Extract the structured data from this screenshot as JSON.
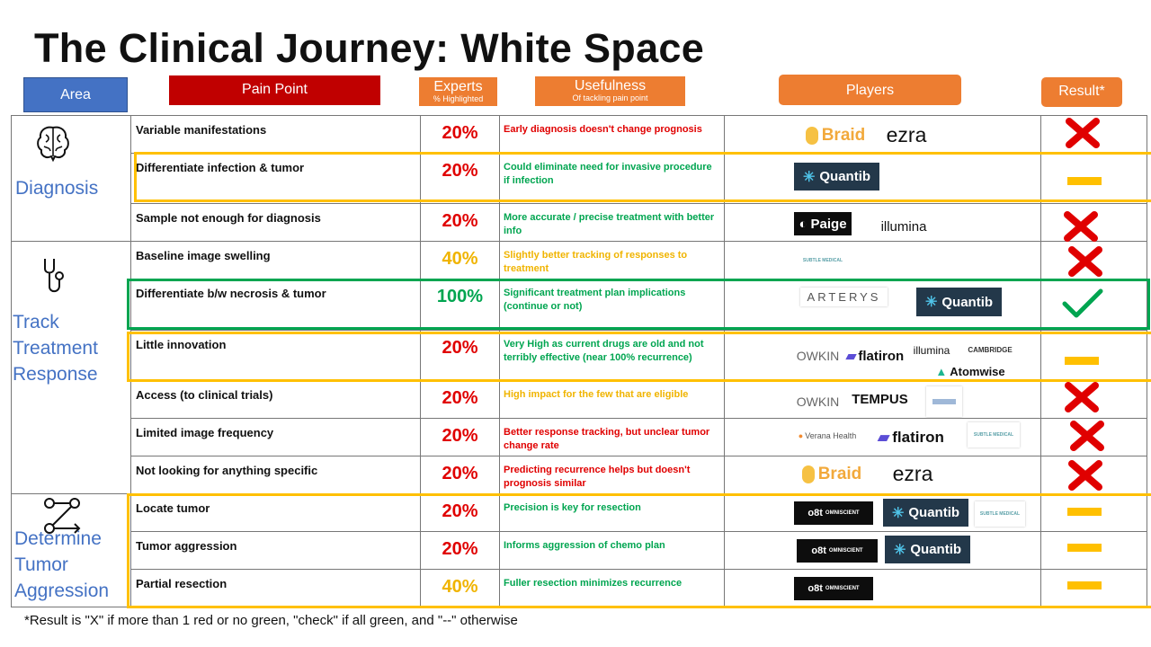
{
  "title": "The Clinical Journey: White Space",
  "headers": {
    "area": "Area",
    "pain_point": "Pain Point",
    "experts": "Experts",
    "experts_sub": "% Highlighted",
    "usefulness": "Usefulness",
    "usefulness_sub": "Of tackling pain point",
    "players": "Players",
    "result": "Result*"
  },
  "areas": [
    {
      "label": "Diagnosis",
      "icon": "brain-icon"
    },
    {
      "label": "Track Treatment Response",
      "line1": "Track",
      "line2": "Treatment",
      "line3": "Response",
      "icon": "stethoscope-icon"
    },
    {
      "label": "Determine Tumor Aggression",
      "line1": "Determine",
      "line2": "Tumor",
      "line3": "Aggression",
      "icon": "route-icon"
    }
  ],
  "rows": [
    {
      "pain": "Variable manifestations",
      "pct": "20%",
      "use": "Early diagnosis  doesn't change  prognosis",
      "result": "x"
    },
    {
      "pain": "Differentiate infection & tumor",
      "pct": "20%",
      "use": "Could eliminate need for invasive procedure if infection",
      "result": "dash"
    },
    {
      "pain": "Sample not enough for diagnosis",
      "pct": "20%",
      "use": "More accurate / precise treatment with better info",
      "result": "x"
    },
    {
      "pain": "Baseline image swelling",
      "pct": "40%",
      "use": "Slightly  better tracking of responses to treatment",
      "result": "x"
    },
    {
      "pain": "Differentiate b/w necrosis & tumor",
      "pct": "100%",
      "use": "Significant  treatment plan implications (continue or not)",
      "result": "check"
    },
    {
      "pain": "Little innovation",
      "pct": "20%",
      "use": "Very High  as current drugs are old and not terribly effective (near 100% recurrence)",
      "result": "dash"
    },
    {
      "pain": "Access (to clinical trials)",
      "pct": "20%",
      "use": "High impact  for the few that are eligible",
      "result": "x"
    },
    {
      "pain": "Limited image frequency",
      "pct": "20%",
      "use": "Better response tracking,  but unclear tumor change  rate",
      "result": "x"
    },
    {
      "pain": "Not looking for anything specific",
      "pct": "20%",
      "use": "Predicting recurrence helps but doesn't prognosis  similar",
      "result": "x"
    },
    {
      "pain": "Locate tumor",
      "pct": "20%",
      "use": "Precision is key for resection",
      "result": "dash"
    },
    {
      "pain": "Tumor aggression",
      "pct": "20%",
      "use": "Informs aggression  of chemo plan",
      "result": "dash"
    },
    {
      "pain": "Partial resection",
      "pct": "40%",
      "use": "Fuller resection minimizes  recurrence",
      "result": "dash"
    }
  ],
  "logos": {
    "braid": "Braid",
    "ezra": "ezra",
    "quantib": "Quantib",
    "paige": "Paige",
    "illumina": "illumina",
    "subtle": "SUBTLE MEDICAL",
    "arterys": "ARTERYS",
    "owkin": "OWKIN",
    "flatiron": "flatiron",
    "cambridge": "CAMBRIDGE",
    "atomwise": "Atomwise",
    "tempus": "TEMPUS",
    "verana": "Verana Health",
    "omniscient": "OMNISCIENT",
    "ost": "o8t"
  },
  "colors": {
    "red": "#e00000",
    "orange_pct": "#f0b400",
    "green": "#00a550",
    "usefulness_red": "#e00000",
    "usefulness_green": "#00a550",
    "usefulness_yellow": "#f0b400",
    "area_header": "#4472c4",
    "pain_header": "#c00000",
    "orange_header": "#ed7d31",
    "highlight_yellow": "#ffc000",
    "highlight_green": "#00a550"
  },
  "footnote": "*Result is \"X\" if more than 1 red or no green, \"check\" if all green, and \"--\" otherwise"
}
